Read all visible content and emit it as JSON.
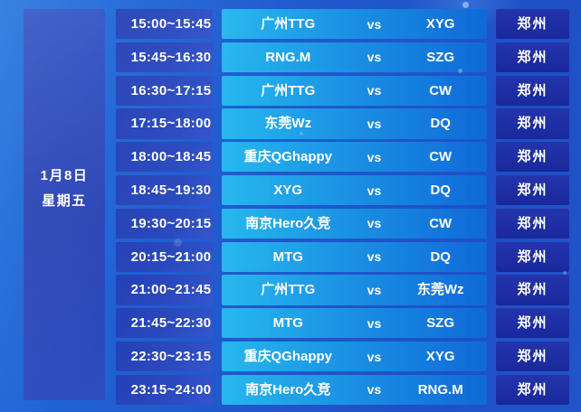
{
  "date_panel": {
    "line1": "1月8日",
    "line2": "星期五"
  },
  "vs_label": "vs",
  "rows": [
    {
      "time": "15:00~15:45",
      "team1": "广州TTG",
      "team2": "XYG",
      "location": "郑州"
    },
    {
      "time": "15:45~16:30",
      "team1": "RNG.M",
      "team2": "SZG",
      "location": "郑州"
    },
    {
      "time": "16:30~17:15",
      "team1": "广州TTG",
      "team2": "CW",
      "location": "郑州"
    },
    {
      "time": "17:15~18:00",
      "team1": "东莞Wz",
      "team2": "DQ",
      "location": "郑州"
    },
    {
      "time": "18:00~18:45",
      "team1": "重庆QGhappy",
      "team2": "CW",
      "location": "郑州"
    },
    {
      "time": "18:45~19:30",
      "team1": "XYG",
      "team2": "DQ",
      "location": "郑州"
    },
    {
      "time": "19:30~20:15",
      "team1": "南京Hero久竞",
      "team2": "CW",
      "location": "郑州"
    },
    {
      "time": "20:15~21:00",
      "team1": "MTG",
      "team2": "DQ",
      "location": "郑州"
    },
    {
      "time": "21:00~21:45",
      "team1": "广州TTG",
      "team2": "东莞Wz",
      "location": "郑州"
    },
    {
      "time": "21:45~22:30",
      "team1": "MTG",
      "team2": "SZG",
      "location": "郑州"
    },
    {
      "time": "22:30~23:15",
      "team1": "重庆QGhappy",
      "team2": "XYG",
      "location": "郑州"
    },
    {
      "time": "23:15~24:00",
      "team1": "南京Hero久竞",
      "team2": "RNG.M",
      "location": "郑州"
    }
  ],
  "colors": {
    "background_start": "#2274de",
    "background_end": "#1e50c6",
    "date_cell": "#2b46b5",
    "date_cell_light": "#3254c6",
    "time_cell_start": "#2440b6",
    "time_cell_end": "#3355cd",
    "match_cell_start": "#27b8ee",
    "match_cell_mid": "#1b93e4",
    "match_cell_end": "#0f69d8",
    "location_cell_start": "#2434ac",
    "location_cell_end": "#19289c",
    "text": "#ffffff"
  }
}
